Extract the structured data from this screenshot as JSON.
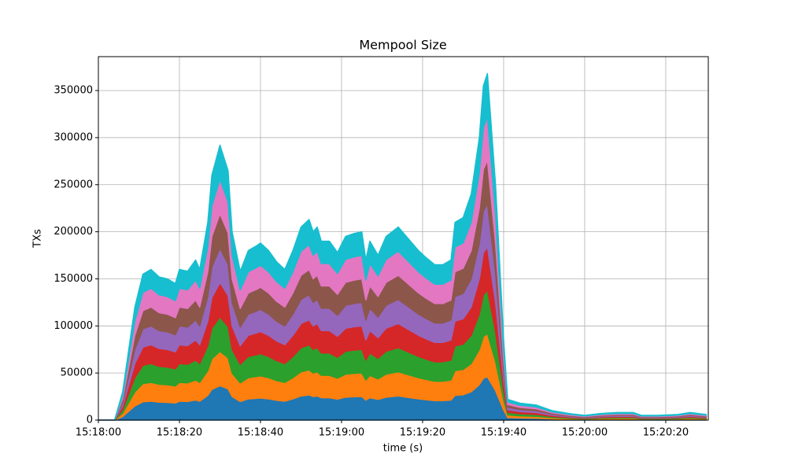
{
  "chart_data": {
    "type": "stacked_area",
    "title": "Mempool Size",
    "xlabel": "time (s)",
    "ylabel": "TXs",
    "x": [
      0,
      4,
      6,
      9,
      11,
      13,
      15,
      17,
      19,
      20,
      22,
      24,
      25,
      27,
      28,
      30,
      32,
      33,
      35,
      37,
      39,
      40,
      42,
      44,
      46,
      48,
      50,
      52,
      53,
      54,
      55,
      57,
      59,
      61,
      63,
      65,
      66,
      67,
      69,
      71,
      74,
      76,
      79,
      81,
      83,
      85,
      87,
      88,
      90,
      92,
      94,
      95,
      96,
      98,
      100,
      101,
      104,
      108,
      112,
      116,
      120,
      124,
      128,
      132,
      134,
      138,
      143,
      146,
      150
    ],
    "series": [
      {
        "color": "#1f77b4",
        "values": [
          0,
          0,
          3750,
          15000,
          19375,
          20000,
          19000,
          18750,
          18125,
          20000,
          19750,
          21250,
          20000,
          26250,
          32500,
          36500,
          33125,
          25000,
          19750,
          22500,
          23125,
          23500,
          22500,
          21000,
          20000,
          22500,
          25625,
          26625,
          25000,
          25625,
          23750,
          23750,
          22250,
          24375,
          24750,
          25000,
          21250,
          23750,
          21875,
          24375,
          25625,
          24375,
          22500,
          21500,
          20625,
          20625,
          21250,
          26250,
          26875,
          30000,
          37500,
          44375,
          46000,
          31250,
          10625,
          2750,
          2250,
          2000,
          1250,
          875,
          625,
          875,
          1000,
          1000,
          625,
          625,
          750,
          1000,
          750
        ]
      },
      {
        "color": "#ff7f0e",
        "values": [
          0,
          0,
          3750,
          15000,
          19375,
          20000,
          19000,
          18750,
          18125,
          20000,
          19750,
          21250,
          20000,
          26250,
          32500,
          36500,
          33125,
          25000,
          19750,
          22500,
          23125,
          23500,
          22500,
          21000,
          20000,
          22500,
          25625,
          26625,
          25000,
          25625,
          23750,
          23750,
          22250,
          24375,
          24750,
          25000,
          21250,
          23750,
          21875,
          24375,
          25625,
          24375,
          22500,
          21500,
          20625,
          20625,
          21250,
          26250,
          26875,
          30000,
          37500,
          44375,
          46000,
          31250,
          10625,
          2750,
          2250,
          2000,
          1250,
          875,
          625,
          875,
          1000,
          1000,
          625,
          625,
          750,
          1000,
          750
        ]
      },
      {
        "color": "#2ca02c",
        "values": [
          0,
          0,
          3750,
          15000,
          19375,
          20000,
          19000,
          18750,
          18125,
          20000,
          19750,
          21250,
          20000,
          26250,
          32500,
          36500,
          33125,
          25000,
          19750,
          22500,
          23125,
          23500,
          22500,
          21000,
          20000,
          22500,
          25625,
          26625,
          25000,
          25625,
          23750,
          23750,
          22250,
          24375,
          24750,
          25000,
          21250,
          23750,
          21875,
          24375,
          25625,
          24375,
          22500,
          21500,
          20625,
          20625,
          21250,
          26250,
          26875,
          30000,
          37500,
          44375,
          46000,
          31250,
          10625,
          2750,
          2250,
          2000,
          1250,
          875,
          625,
          875,
          1000,
          1000,
          625,
          625,
          750,
          1000,
          750
        ]
      },
      {
        "color": "#d62728",
        "values": [
          0,
          0,
          3750,
          15000,
          19375,
          20000,
          19000,
          18750,
          18125,
          20000,
          19750,
          21250,
          20000,
          26250,
          32500,
          36500,
          33125,
          25000,
          19750,
          22500,
          23125,
          23500,
          22500,
          21000,
          20000,
          22500,
          25625,
          26625,
          25000,
          25625,
          23750,
          23750,
          22250,
          24375,
          24750,
          25000,
          21250,
          23750,
          21875,
          24375,
          25625,
          24375,
          22500,
          21500,
          20625,
          20625,
          21250,
          26250,
          26875,
          30000,
          37500,
          44375,
          46000,
          31250,
          10625,
          2750,
          2250,
          2000,
          1250,
          875,
          625,
          875,
          1000,
          1000,
          625,
          625,
          750,
          1000,
          750
        ]
      },
      {
        "color": "#9467bd",
        "values": [
          0,
          0,
          3750,
          15000,
          19375,
          20000,
          19000,
          18750,
          18125,
          20000,
          19750,
          21250,
          20000,
          26250,
          32500,
          36500,
          33125,
          25000,
          19750,
          22500,
          23125,
          23500,
          22500,
          21000,
          20000,
          22500,
          25625,
          26625,
          25000,
          25625,
          23750,
          23750,
          22250,
          24375,
          24750,
          25000,
          21250,
          23750,
          21875,
          24375,
          25625,
          24375,
          22500,
          21500,
          20625,
          20625,
          21250,
          26250,
          26875,
          30000,
          37500,
          44375,
          46000,
          31250,
          10625,
          2750,
          2250,
          2000,
          1250,
          875,
          625,
          875,
          1000,
          1000,
          625,
          625,
          750,
          1000,
          750
        ]
      },
      {
        "color": "#8c564b",
        "values": [
          0,
          0,
          3750,
          15000,
          19375,
          20000,
          19000,
          18750,
          18125,
          20000,
          19750,
          21250,
          20000,
          26250,
          32500,
          36500,
          33125,
          25000,
          19750,
          22500,
          23125,
          23500,
          22500,
          21000,
          20000,
          22500,
          25625,
          26625,
          25000,
          25625,
          23750,
          23750,
          22250,
          24375,
          24750,
          25000,
          21250,
          23750,
          21875,
          24375,
          25625,
          24375,
          22500,
          21500,
          20625,
          20625,
          21250,
          26250,
          26875,
          30000,
          37500,
          44375,
          46000,
          31250,
          10625,
          2750,
          2250,
          2000,
          1250,
          875,
          625,
          875,
          1000,
          1000,
          625,
          625,
          750,
          1000,
          750
        ]
      },
      {
        "color": "#e377c2",
        "values": [
          0,
          0,
          3750,
          15000,
          19375,
          20000,
          19000,
          18750,
          18125,
          20000,
          19750,
          21250,
          20000,
          26250,
          32500,
          36500,
          33125,
          25000,
          19750,
          22500,
          23125,
          23500,
          22500,
          21000,
          20000,
          22500,
          25625,
          26625,
          25000,
          25625,
          23750,
          23750,
          22250,
          24375,
          24750,
          25000,
          21250,
          23750,
          21875,
          24375,
          25625,
          24375,
          22500,
          21500,
          20625,
          20625,
          21250,
          26250,
          26875,
          30000,
          37500,
          44375,
          46000,
          31250,
          10625,
          2750,
          2250,
          2000,
          1250,
          875,
          625,
          875,
          1000,
          1000,
          625,
          625,
          750,
          1000,
          750
        ]
      },
      {
        "color": "#17becf",
        "values": [
          0,
          0,
          3750,
          15000,
          19375,
          20000,
          19000,
          18750,
          18125,
          20000,
          19750,
          21250,
          20000,
          26250,
          32500,
          36500,
          33125,
          25000,
          19750,
          22500,
          23125,
          23500,
          22500,
          21000,
          20000,
          22500,
          25625,
          26625,
          25000,
          25625,
          23750,
          23750,
          22250,
          24375,
          24750,
          25000,
          21250,
          23750,
          21875,
          24375,
          25625,
          24375,
          22500,
          21500,
          20625,
          20625,
          21250,
          26250,
          26875,
          30000,
          37500,
          44375,
          46000,
          31250,
          10625,
          2750,
          2250,
          2000,
          1250,
          875,
          625,
          875,
          1000,
          1000,
          625,
          625,
          750,
          1000,
          750
        ]
      }
    ],
    "xlim": [
      0,
      150.5
    ],
    "ylim": [
      0,
      386000
    ],
    "xticks": [
      {
        "value": 0,
        "label": "15:18:00"
      },
      {
        "value": 20,
        "label": "15:18:20"
      },
      {
        "value": 40,
        "label": "15:18:40"
      },
      {
        "value": 60,
        "label": "15:19:00"
      },
      {
        "value": 80,
        "label": "15:19:20"
      },
      {
        "value": 100,
        "label": "15:19:40"
      },
      {
        "value": 120,
        "label": "15:20:00"
      },
      {
        "value": 140,
        "label": "15:20:20"
      }
    ],
    "yticks": [
      0,
      50000,
      100000,
      150000,
      200000,
      250000,
      300000,
      350000
    ],
    "grid": true
  }
}
